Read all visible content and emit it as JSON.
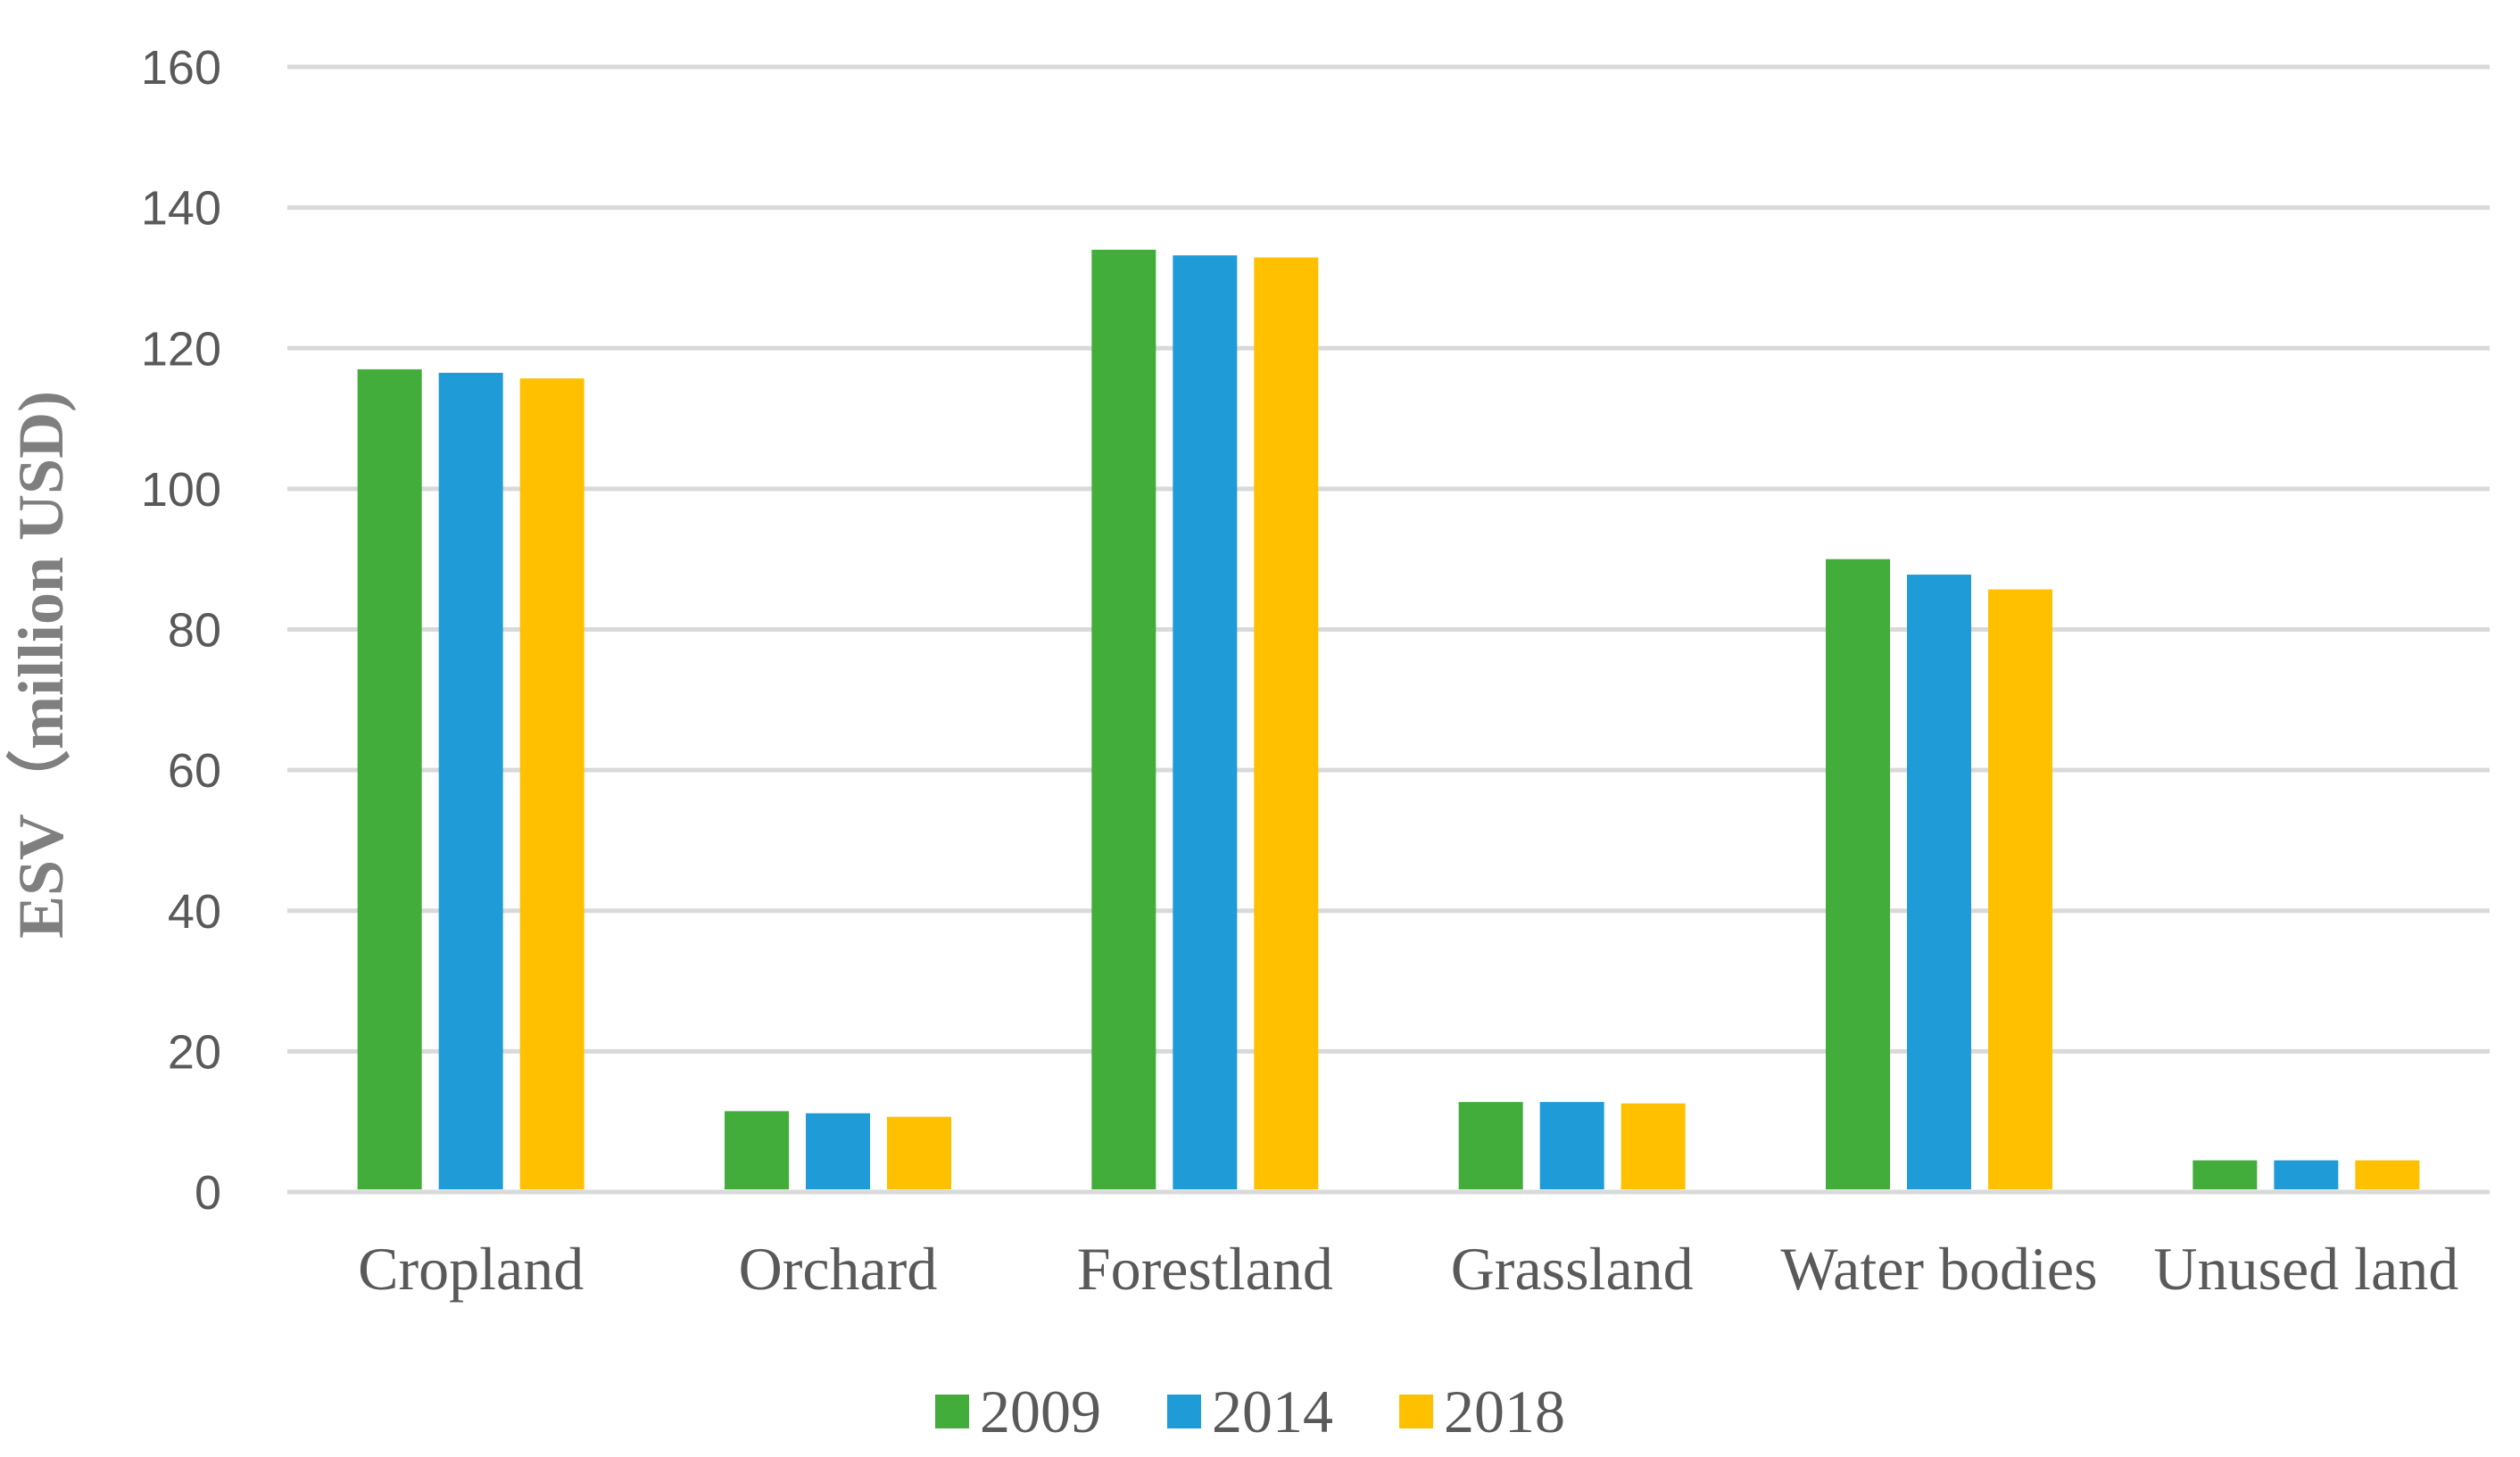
{
  "chart_data": {
    "type": "bar",
    "title": "",
    "xlabel": "",
    "ylabel": "ESV（million USD)",
    "ylim": [
      0,
      160
    ],
    "yticks": [
      "0",
      "20",
      "40",
      "60",
      "80",
      "100",
      "120",
      "140",
      "160"
    ],
    "grid": true,
    "legend_position": "bottom",
    "categories": [
      "Cropland",
      "Orchard",
      "Forestland",
      "Grassland",
      "Water bodies",
      "Unused land"
    ],
    "series": [
      {
        "name": "2009",
        "color": "#43ad3c",
        "values": [
          117,
          11.5,
          134,
          12.8,
          90,
          4.5
        ]
      },
      {
        "name": "2014",
        "color": "#1f9cd7",
        "values": [
          116.5,
          11.2,
          133.2,
          12.8,
          87.8,
          4.5
        ]
      },
      {
        "name": "2018",
        "color": "#ffc000",
        "values": [
          115.7,
          10.7,
          132.9,
          12.6,
          85.7,
          4.5
        ]
      }
    ]
  }
}
